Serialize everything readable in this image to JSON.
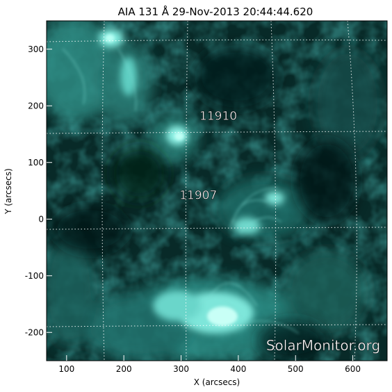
{
  "title": "AIA 131 Å 29-Nov-2013 20:44:44.620",
  "watermark": "SolarMonitor.org",
  "colors": {
    "background": "#ffffff",
    "frame": "#000000",
    "image_dark": "#031615",
    "image_mid": "#0e4e4a",
    "image_bright": "#66e6d8",
    "grid": "#ffffff"
  },
  "regions": [
    {
      "label": "11910",
      "x": 365,
      "y": 175
    },
    {
      "label": "11907",
      "x": 330,
      "y": 35
    }
  ],
  "axes": {
    "xlabel": "X (arcsecs)",
    "ylabel": "Y (arcsecs)",
    "xlim": [
      65,
      660
    ],
    "ylim": [
      -250,
      350
    ],
    "xticks": [
      100,
      200,
      300,
      400,
      500,
      600
    ],
    "yticks": [
      -200,
      -100,
      0,
      100,
      200,
      300
    ]
  }
}
